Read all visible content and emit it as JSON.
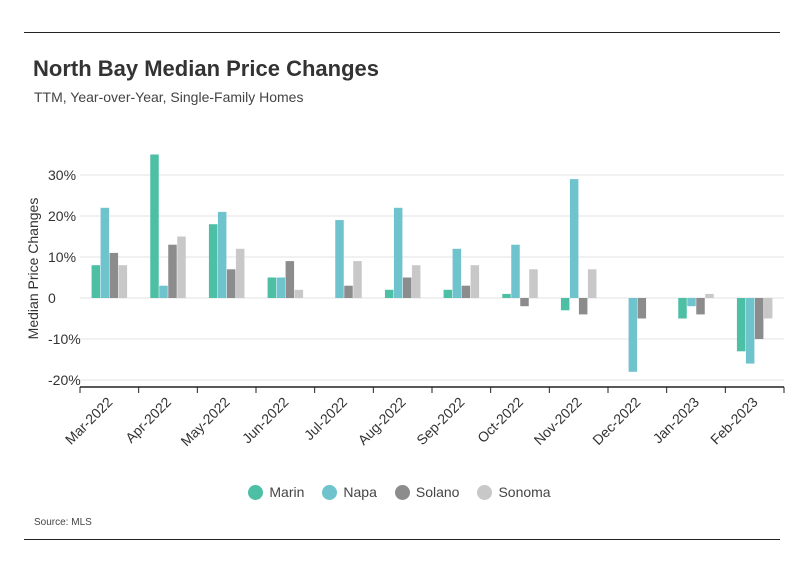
{
  "header": {
    "title": "North Bay Median Price Changes",
    "subtitle": "TTM, Year-over-Year, Single-Family Homes"
  },
  "footer": {
    "source": "Source: MLS"
  },
  "chart_data": {
    "type": "bar",
    "title": "North Bay Median Price Changes",
    "subtitle": "TTM, Year-over-Year, Single-Family Homes",
    "xlabel": "",
    "ylabel": "Median Price Changes",
    "ylim": [
      -22,
      35
    ],
    "yticks": [
      -20,
      -10,
      0,
      10,
      20,
      30
    ],
    "ytick_labels": [
      "-20%",
      "-10%",
      "0",
      "10%",
      "20%",
      "30%"
    ],
    "grid": true,
    "legend_position": "bottom",
    "categories": [
      "Mar-2022",
      "Apr-2022",
      "May-2022",
      "Jun-2022",
      "Jul-2022",
      "Aug-2022",
      "Sep-2022",
      "Oct-2022",
      "Nov-2022",
      "Dec-2022",
      "Jan-2023",
      "Feb-2023"
    ],
    "series": [
      {
        "name": "Marin",
        "color": "#4dbfa4",
        "values": [
          8,
          35,
          18,
          5,
          0,
          2,
          2,
          1,
          -3,
          0,
          -5,
          -13
        ]
      },
      {
        "name": "Napa",
        "color": "#6ec3cc",
        "values": [
          22,
          3,
          21,
          5,
          19,
          22,
          12,
          13,
          29,
          -18,
          -2,
          -16
        ]
      },
      {
        "name": "Solano",
        "color": "#8c8c8c",
        "values": [
          11,
          13,
          7,
          9,
          3,
          5,
          3,
          -2,
          -4,
          -5,
          -4,
          -10
        ]
      },
      {
        "name": "Sonoma",
        "color": "#c8c8c8",
        "values": [
          8,
          15,
          12,
          2,
          9,
          8,
          8,
          7,
          7,
          0,
          1,
          -5
        ]
      }
    ]
  }
}
